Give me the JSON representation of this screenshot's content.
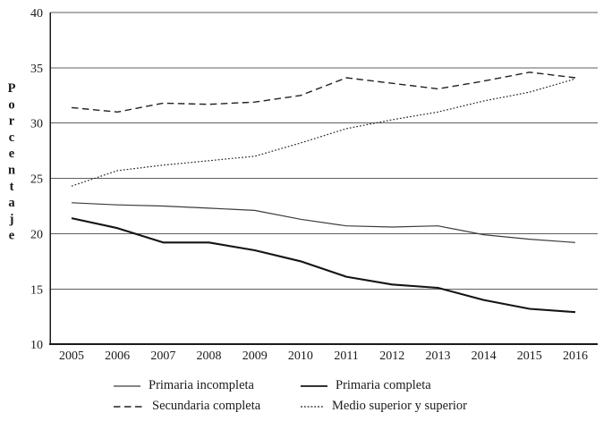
{
  "chart_data": {
    "type": "line",
    "title": "",
    "xlabel": "",
    "ylabel": "Porcentaje",
    "x": [
      2005,
      2006,
      2007,
      2008,
      2009,
      2010,
      2011,
      2012,
      2013,
      2014,
      2015,
      2016
    ],
    "ylim": [
      10,
      40
    ],
    "y_ticks": [
      10,
      15,
      20,
      25,
      30,
      35,
      40
    ],
    "grid": "horizontal-only",
    "legend_position": "bottom-two-columns",
    "series": [
      {
        "name": "Primaria incompleta",
        "style": "solid-thin",
        "values": [
          22.8,
          22.6,
          22.5,
          22.3,
          22.1,
          21.3,
          20.7,
          20.6,
          20.7,
          19.9,
          19.5,
          19.2
        ]
      },
      {
        "name": "Primaria completa",
        "style": "solid-thick",
        "values": [
          21.4,
          20.5,
          19.2,
          19.2,
          18.5,
          17.5,
          16.1,
          15.4,
          15.1,
          14.0,
          13.2,
          12.9
        ]
      },
      {
        "name": "Secundaria completa",
        "style": "dashed",
        "values": [
          31.4,
          31.0,
          31.8,
          31.7,
          31.9,
          32.5,
          34.1,
          33.6,
          33.1,
          33.8,
          34.6,
          34.1
        ]
      },
      {
        "name": "Medio superior y superior",
        "style": "dotted",
        "values": [
          24.3,
          25.7,
          26.2,
          26.6,
          27.0,
          28.2,
          29.5,
          30.3,
          31.0,
          32.0,
          32.8,
          34.0
        ]
      }
    ]
  },
  "legend": {
    "items": [
      {
        "label": "Primaria incompleta",
        "style": "solid-thin"
      },
      {
        "label": "Primaria completa",
        "style": "solid-thick"
      },
      {
        "label": "Secundaria completa",
        "style": "dashed"
      },
      {
        "label": "Medio superior y superior",
        "style": "dotted"
      }
    ]
  },
  "colors": {
    "background": "#ffffff",
    "text": "#1a1a1a",
    "gridline": "#5f5f5f",
    "axis": "#1a1a1a",
    "series": "#222222"
  }
}
